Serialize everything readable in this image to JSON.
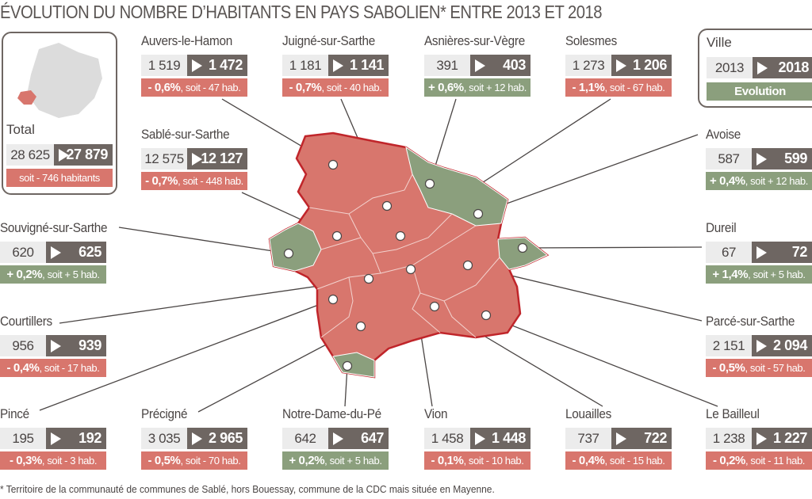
{
  "title": "ÉVOLUTION DU NOMBRE D’HABITANTS EN PAYS SABOLIEN* ENTRE 2013 ET 2018",
  "colors": {
    "decrease": "#d8766d",
    "increase": "#8b9f7d",
    "value_2018_bg": "#6e6662",
    "value_2013_bg": "#ececec"
  },
  "legend": {
    "label": "Ville",
    "year_start": "2013",
    "year_end": "2018",
    "evolution": "Evolution"
  },
  "total": {
    "label": "Total",
    "v2013": "28 625",
    "v2018": "27 879",
    "change": "soit - 746 habitants"
  },
  "communes": [
    {
      "name": "Auvers-le-Hamon",
      "v2013": "1 519",
      "v2018": "1 472",
      "pct": "- 0,6%",
      "rest": ", soit - 47 hab.",
      "trend": "neg"
    },
    {
      "name": "Juigné-sur-Sarthe",
      "v2013": "1 181",
      "v2018": "1 141",
      "pct": "- 0,7%",
      "rest": ", soit - 40 hab.",
      "trend": "neg"
    },
    {
      "name": "Asnières-sur-Vègre",
      "v2013": "391",
      "v2018": "403",
      "pct": "+ 0,6%",
      "rest": ", soit + 12 hab.",
      "trend": "pos"
    },
    {
      "name": "Solesmes",
      "v2013": "1 273",
      "v2018": "1 206",
      "pct": "- 1,1%",
      "rest": ", soit - 67 hab.",
      "trend": "neg"
    },
    {
      "name": "Sablé-sur-Sarthe",
      "v2013": "12 575",
      "v2018": "12 127",
      "pct": "- 0,7%",
      "rest": ", soit - 448 hab.",
      "trend": "neg"
    },
    {
      "name": "Avoise",
      "v2013": "587",
      "v2018": "599",
      "pct": "+ 0,4%",
      "rest": ", soit + 12 hab.",
      "trend": "pos"
    },
    {
      "name": "Souvigné-sur-Sarthe",
      "v2013": "620",
      "v2018": "625",
      "pct": "+ 0,2%",
      "rest": ", soit + 5 hab.",
      "trend": "pos"
    },
    {
      "name": "Dureil",
      "v2013": "67",
      "v2018": "72",
      "pct": "+ 1,4%",
      "rest": ", soit + 5 hab.",
      "trend": "pos"
    },
    {
      "name": "Courtillers",
      "v2013": "956",
      "v2018": "939",
      "pct": "- 0,4%",
      "rest": ", soit - 17 hab.",
      "trend": "neg"
    },
    {
      "name": "Parcé-sur-Sarthe",
      "v2013": "2 151",
      "v2018": "2 094",
      "pct": "- 0,5%",
      "rest": ", soit - 57 hab.",
      "trend": "neg"
    },
    {
      "name": "Pincé",
      "v2013": "195",
      "v2018": "192",
      "pct": "- 0,3%",
      "rest": ", soit - 3 hab.",
      "trend": "neg"
    },
    {
      "name": "Précigné",
      "v2013": "3 035",
      "v2018": "2 965",
      "pct": "- 0,5%",
      "rest": ", soit - 70 hab.",
      "trend": "neg"
    },
    {
      "name": "Notre-Dame-du-Pé",
      "v2013": "642",
      "v2018": "647",
      "pct": "+ 0,2%",
      "rest": ", soit + 5 hab.",
      "trend": "pos"
    },
    {
      "name": "Vion",
      "v2013": "1 458",
      "v2018": "1 448",
      "pct": "- 0,1%",
      "rest": ", soit - 10 hab.",
      "trend": "neg"
    },
    {
      "name": "Louailles",
      "v2013": "737",
      "v2018": "722",
      "pct": "- 0,4%",
      "rest": ", soit - 15 hab.",
      "trend": "neg"
    },
    {
      "name": "Le Bailleul",
      "v2013": "1 238",
      "v2018": "1 227",
      "pct": "- 0,2%",
      "rest": ", soit - 11 hab.",
      "trend": "neg"
    }
  ],
  "footnote": "* Territoire de la communauté de communes de Sablé, hors Bouessay, commune de la CDC mais située en Mayenne."
}
